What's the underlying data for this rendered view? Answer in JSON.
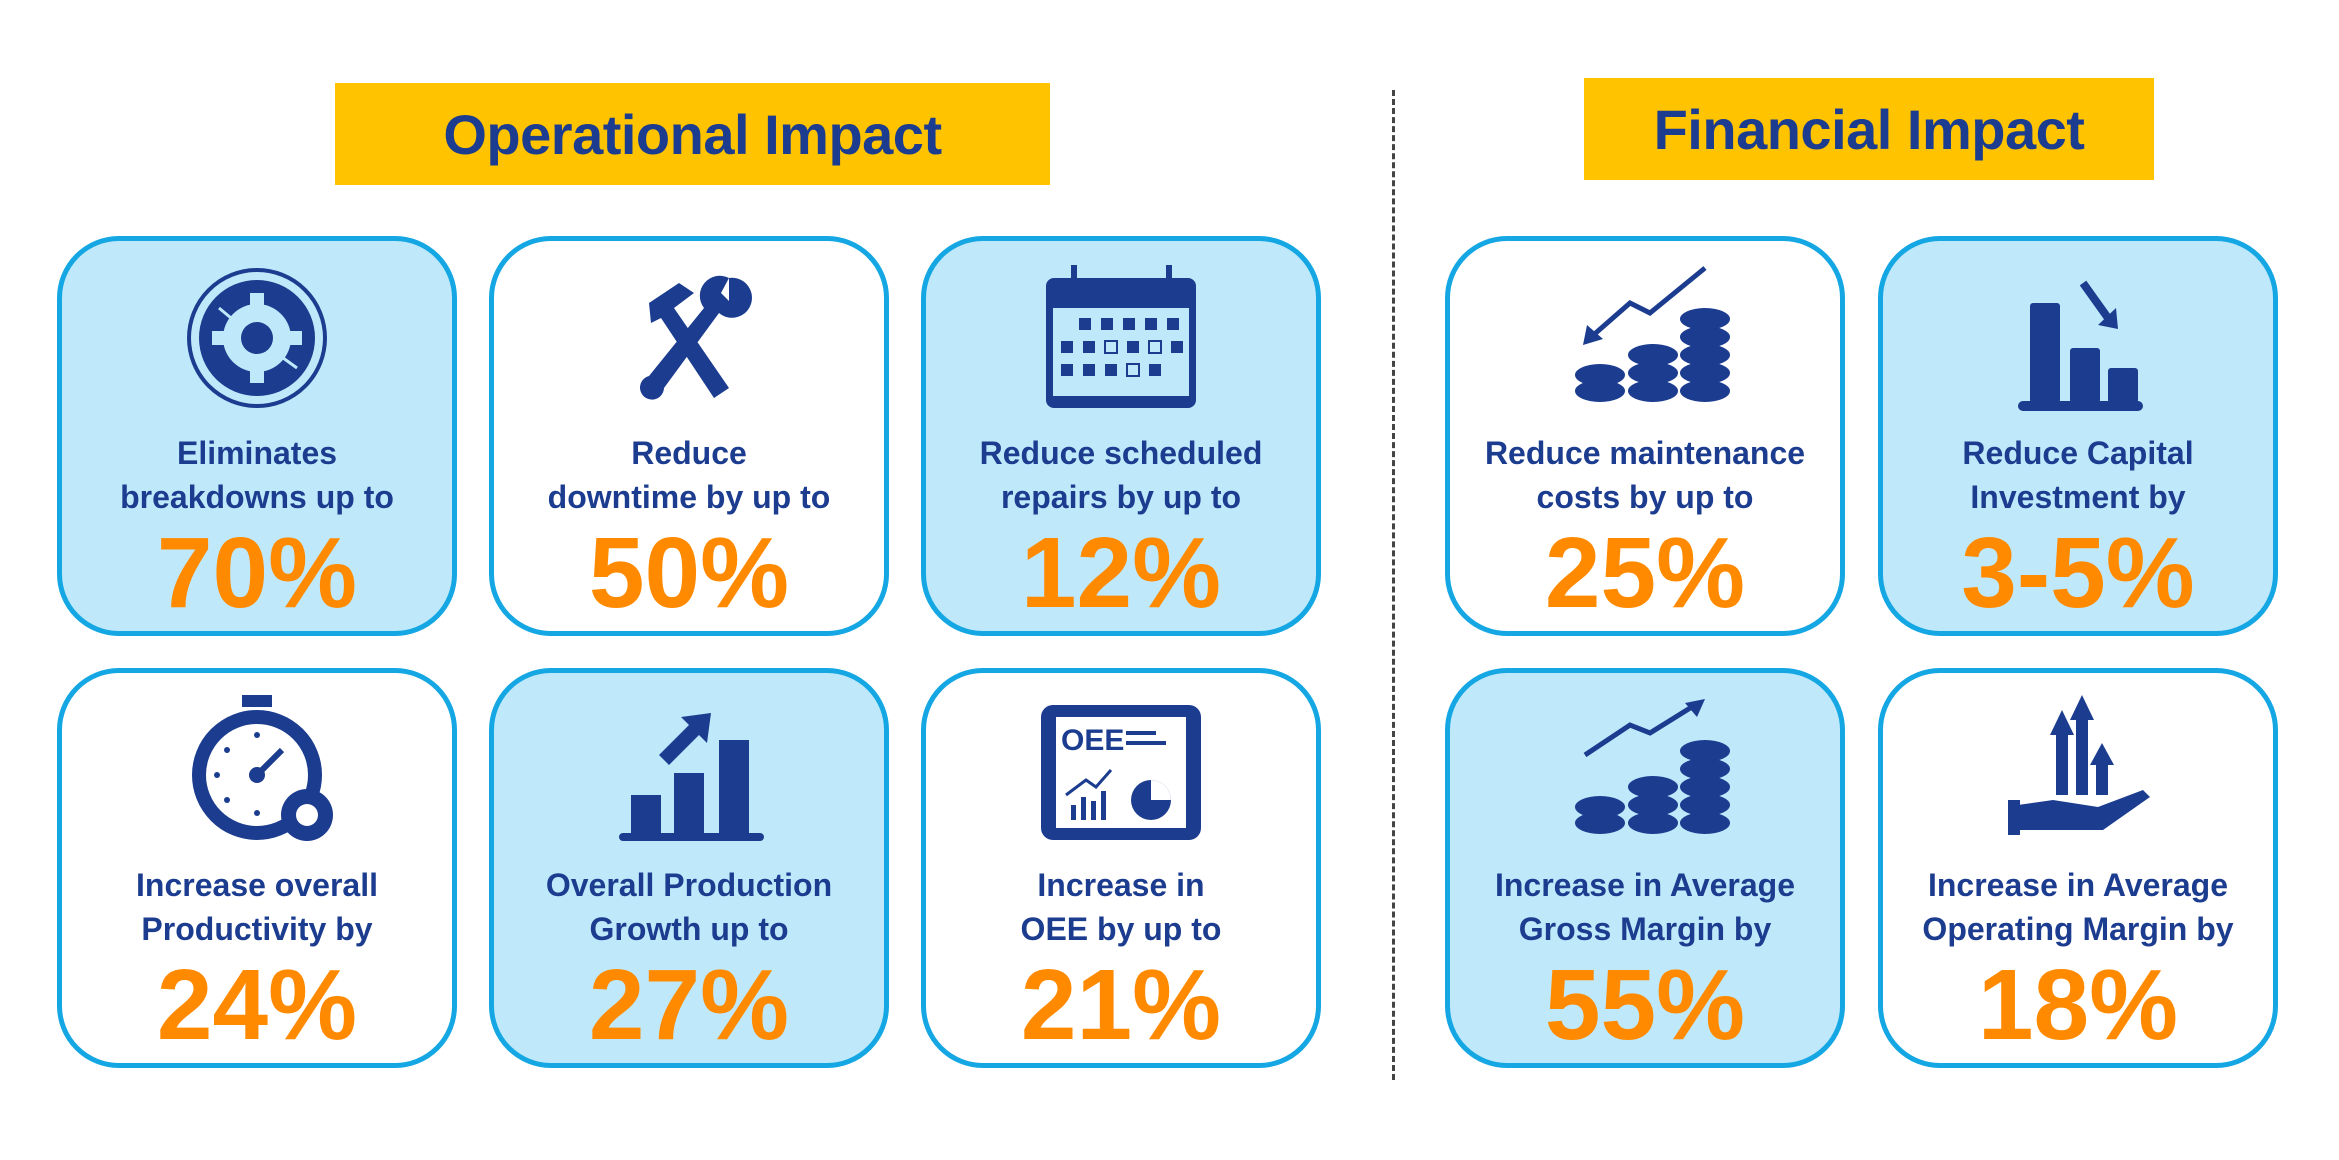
{
  "operational": {
    "title": "Operational Impact",
    "cards": [
      {
        "icon": "gear-breakdown-icon",
        "line1": "Eliminates",
        "line2": "breakdowns up to",
        "value": "70%"
      },
      {
        "icon": "hammer-wrench-icon",
        "line1": "Reduce",
        "line2": "downtime by up to",
        "value": "50%"
      },
      {
        "icon": "calendar-icon",
        "line1": "Reduce scheduled",
        "line2": "repairs by up to",
        "value": "12%"
      },
      {
        "icon": "stopwatch-gear-icon",
        "line1": "Increase overall",
        "line2": "Productivity by",
        "value": "24%"
      },
      {
        "icon": "growth-bars-icon",
        "line1": "Overall Production",
        "line2": "Growth up to",
        "value": "27%"
      },
      {
        "icon": "oee-tablet-icon",
        "icon_text": "OEE",
        "line1": "Increase in",
        "line2": "OEE by up to",
        "value": "21%"
      }
    ]
  },
  "financial": {
    "title": "Financial Impact",
    "cards": [
      {
        "icon": "coins-down-trend-icon",
        "line1": "Reduce maintenance",
        "line2": "costs by up to",
        "value": "25%"
      },
      {
        "icon": "bars-decrease-icon",
        "line1": "Reduce Capital",
        "line2": "Investment by",
        "value": "3-5%"
      },
      {
        "icon": "coins-up-trend-icon",
        "line1": "Increase in Average",
        "line2": "Gross Margin by",
        "value": "55%"
      },
      {
        "icon": "hand-arrows-up-icon",
        "line1": "Increase in Average",
        "line2": "Operating Margin by",
        "value": "18%"
      }
    ]
  },
  "colors": {
    "header_bg": "#ffc300",
    "text": "#1b3c8f",
    "value": "#ff8a00",
    "card_border": "#15a7e3",
    "card_fill": "#bfe9fb"
  }
}
